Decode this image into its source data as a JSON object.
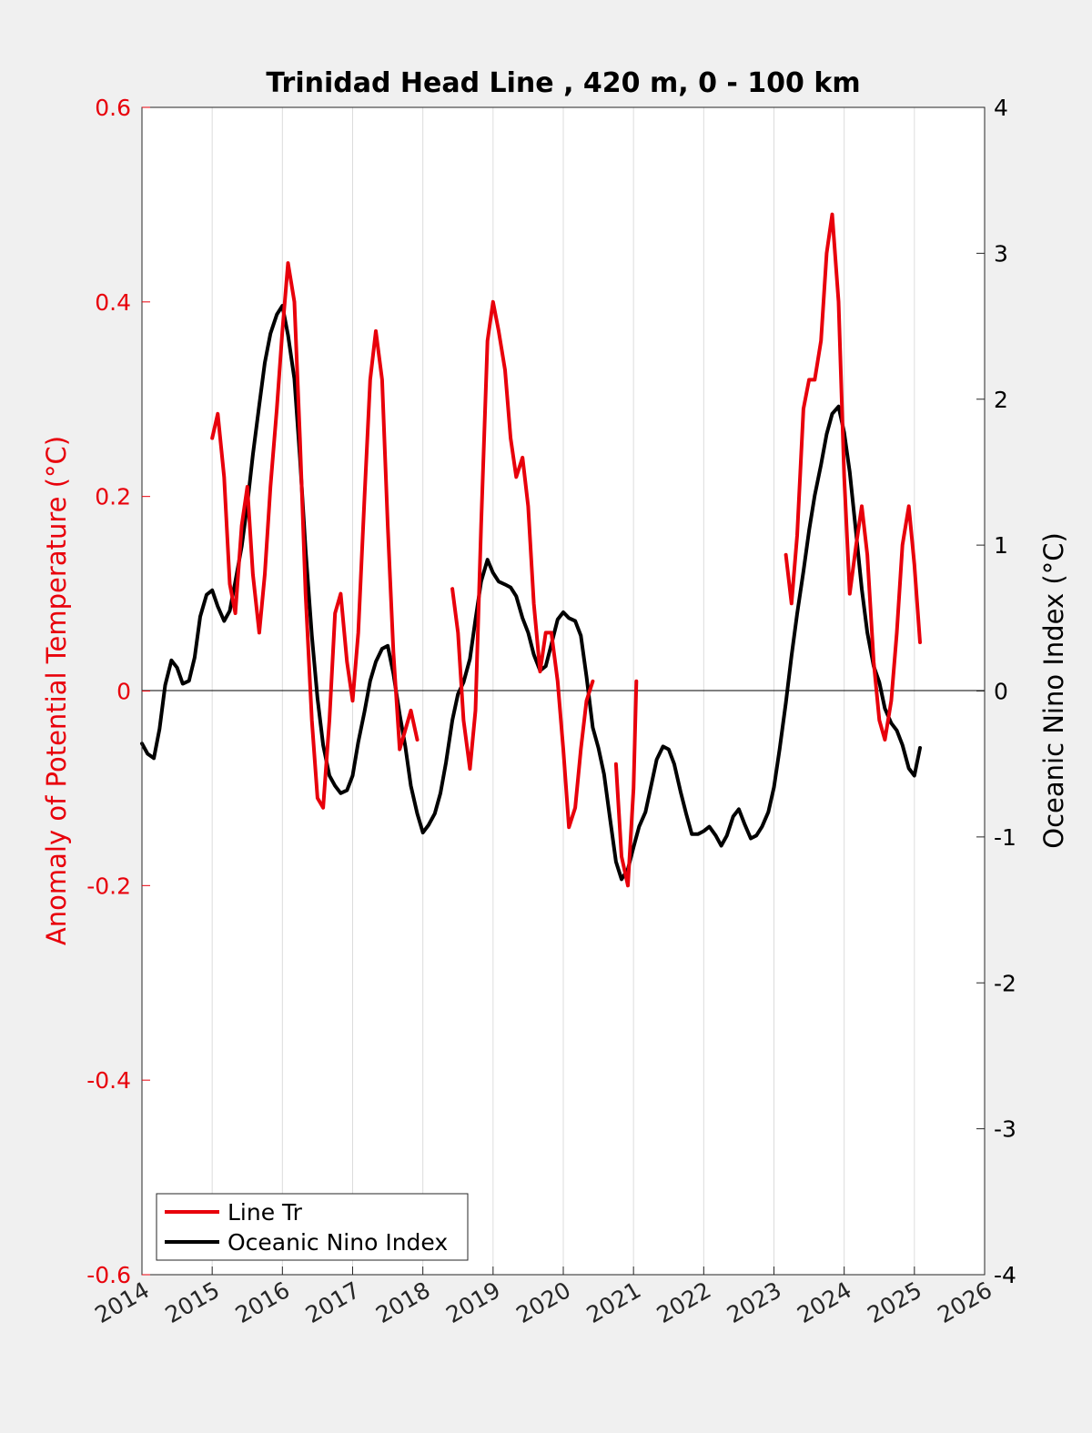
{
  "chart_data": {
    "type": "line",
    "title": "Trinidad Head Line , 420 m, 0 - 100 km",
    "xlabel": "",
    "ylabel_left": "Anomaly of Potential Temperature (°C)",
    "ylabel_right": "Oceanic Nino Index (°C)",
    "xlim": [
      2014,
      2026
    ],
    "ylim_left": [
      -0.6,
      0.6
    ],
    "ylim_right": [
      -4,
      4
    ],
    "x_ticks": [
      "2014",
      "2015",
      "2016",
      "2017",
      "2018",
      "2019",
      "2020",
      "2021",
      "2022",
      "2023",
      "2024",
      "2025",
      "2026"
    ],
    "y_left_ticks": [
      "-0.6",
      "-0.4",
      "-0.2",
      "0",
      "0.2",
      "0.4",
      "0.6"
    ],
    "y_right_ticks": [
      "-4",
      "-3",
      "-2",
      "-1",
      "0",
      "1",
      "2",
      "3",
      "4"
    ],
    "grid": "vertical",
    "legend_position": "bottom-left",
    "colors": {
      "line_tr": "#e8000b",
      "oni": "#000000",
      "axis_left": "#e8000b",
      "axis_right": "#000000"
    },
    "series": [
      {
        "name": "Line Tr",
        "axis": "left",
        "color": "#e8000b",
        "segments": [
          [
            [
              2015.0,
              0.26
            ],
            [
              2015.08,
              0.285
            ],
            [
              2015.17,
              0.22
            ],
            [
              2015.25,
              0.11
            ],
            [
              2015.33,
              0.08
            ],
            [
              2015.42,
              0.17
            ],
            [
              2015.5,
              0.21
            ],
            [
              2015.58,
              0.12
            ],
            [
              2015.67,
              0.06
            ],
            [
              2015.75,
              0.12
            ],
            [
              2015.83,
              0.21
            ],
            [
              2015.92,
              0.29
            ],
            [
              2016.0,
              0.37
            ],
            [
              2016.08,
              0.44
            ],
            [
              2016.17,
              0.4
            ],
            [
              2016.25,
              0.26
            ],
            [
              2016.33,
              0.1
            ],
            [
              2016.42,
              -0.03
            ],
            [
              2016.5,
              -0.11
            ],
            [
              2016.58,
              -0.12
            ],
            [
              2016.67,
              -0.03
            ],
            [
              2016.75,
              0.08
            ],
            [
              2016.83,
              0.1
            ],
            [
              2016.92,
              0.03
            ],
            [
              2017.0,
              -0.01
            ],
            [
              2017.08,
              0.06
            ],
            [
              2017.17,
              0.2
            ],
            [
              2017.25,
              0.32
            ],
            [
              2017.33,
              0.37
            ],
            [
              2017.42,
              0.32
            ],
            [
              2017.5,
              0.17
            ],
            [
              2017.58,
              0.04
            ],
            [
              2017.67,
              -0.06
            ],
            [
              2017.75,
              -0.04
            ],
            [
              2017.83,
              -0.02
            ],
            [
              2017.92,
              -0.05
            ]
          ],
          [
            [
              2018.42,
              0.105
            ],
            [
              2018.5,
              0.06
            ],
            [
              2018.58,
              -0.03
            ],
            [
              2018.67,
              -0.08
            ],
            [
              2018.75,
              -0.02
            ],
            [
              2018.83,
              0.17
            ],
            [
              2018.92,
              0.36
            ],
            [
              2019.0,
              0.4
            ],
            [
              2019.08,
              0.37
            ],
            [
              2019.17,
              0.33
            ],
            [
              2019.25,
              0.26
            ],
            [
              2019.33,
              0.22
            ],
            [
              2019.42,
              0.24
            ],
            [
              2019.5,
              0.19
            ],
            [
              2019.58,
              0.09
            ],
            [
              2019.67,
              0.02
            ],
            [
              2019.75,
              0.06
            ],
            [
              2019.83,
              0.06
            ],
            [
              2019.92,
              0.01
            ],
            [
              2020.0,
              -0.06
            ],
            [
              2020.08,
              -0.14
            ],
            [
              2020.17,
              -0.12
            ],
            [
              2020.25,
              -0.06
            ],
            [
              2020.33,
              -0.01
            ],
            [
              2020.42,
              0.01
            ]
          ],
          [
            [
              2020.75,
              -0.075
            ],
            [
              2020.83,
              -0.17
            ],
            [
              2020.92,
              -0.2
            ],
            [
              2021.0,
              -0.1
            ],
            [
              2021.04,
              0.01
            ]
          ],
          [
            [
              2023.17,
              0.14
            ],
            [
              2023.25,
              0.09
            ],
            [
              2023.33,
              0.16
            ],
            [
              2023.42,
              0.29
            ],
            [
              2023.5,
              0.32
            ],
            [
              2023.58,
              0.32
            ],
            [
              2023.67,
              0.36
            ],
            [
              2023.75,
              0.45
            ],
            [
              2023.83,
              0.49
            ],
            [
              2023.92,
              0.4
            ],
            [
              2024.0,
              0.22
            ],
            [
              2024.08,
              0.1
            ],
            [
              2024.17,
              0.15
            ],
            [
              2024.25,
              0.19
            ],
            [
              2024.33,
              0.14
            ],
            [
              2024.42,
              0.03
            ],
            [
              2024.5,
              -0.03
            ],
            [
              2024.58,
              -0.05
            ],
            [
              2024.67,
              -0.01
            ],
            [
              2024.75,
              0.06
            ],
            [
              2024.83,
              0.15
            ],
            [
              2024.92,
              0.19
            ],
            [
              2025.0,
              0.13
            ],
            [
              2025.08,
              0.05
            ]
          ]
        ]
      },
      {
        "name": "Oceanic Nino Index",
        "axis": "right",
        "color": "#000000",
        "segments": [
          [
            [
              2014.0,
              -0.36
            ],
            [
              2014.08,
              -0.43
            ],
            [
              2014.17,
              -0.46
            ],
            [
              2014.25,
              -0.26
            ],
            [
              2014.33,
              0.04
            ],
            [
              2014.42,
              0.21
            ],
            [
              2014.5,
              0.16
            ],
            [
              2014.58,
              0.05
            ],
            [
              2014.67,
              0.07
            ],
            [
              2014.75,
              0.23
            ],
            [
              2014.83,
              0.51
            ],
            [
              2014.92,
              0.66
            ],
            [
              2015.0,
              0.69
            ],
            [
              2015.08,
              0.58
            ],
            [
              2015.17,
              0.48
            ],
            [
              2015.25,
              0.55
            ],
            [
              2015.33,
              0.75
            ],
            [
              2015.42,
              0.99
            ],
            [
              2015.5,
              1.28
            ],
            [
              2015.58,
              1.62
            ],
            [
              2015.67,
              1.96
            ],
            [
              2015.75,
              2.25
            ],
            [
              2015.83,
              2.45
            ],
            [
              2015.92,
              2.58
            ],
            [
              2016.0,
              2.64
            ],
            [
              2016.08,
              2.44
            ],
            [
              2016.17,
              2.14
            ],
            [
              2016.25,
              1.6
            ],
            [
              2016.33,
              0.97
            ],
            [
              2016.42,
              0.38
            ],
            [
              2016.5,
              -0.05
            ],
            [
              2016.58,
              -0.37
            ],
            [
              2016.67,
              -0.58
            ],
            [
              2016.75,
              -0.65
            ],
            [
              2016.83,
              -0.7
            ],
            [
              2016.92,
              -0.68
            ],
            [
              2017.0,
              -0.58
            ],
            [
              2017.08,
              -0.35
            ],
            [
              2017.17,
              -0.14
            ],
            [
              2017.25,
              0.07
            ],
            [
              2017.33,
              0.2
            ],
            [
              2017.42,
              0.29
            ],
            [
              2017.5,
              0.31
            ],
            [
              2017.58,
              0.12
            ],
            [
              2017.67,
              -0.16
            ],
            [
              2017.75,
              -0.38
            ],
            [
              2017.83,
              -0.65
            ],
            [
              2017.92,
              -0.84
            ],
            [
              2018.0,
              -0.97
            ],
            [
              2018.08,
              -0.92
            ],
            [
              2018.17,
              -0.84
            ],
            [
              2018.25,
              -0.7
            ],
            [
              2018.33,
              -0.49
            ],
            [
              2018.42,
              -0.2
            ],
            [
              2018.5,
              -0.02
            ],
            [
              2018.58,
              0.06
            ],
            [
              2018.67,
              0.22
            ],
            [
              2018.75,
              0.49
            ],
            [
              2018.83,
              0.75
            ],
            [
              2018.92,
              0.9
            ],
            [
              2019.0,
              0.81
            ],
            [
              2019.08,
              0.75
            ],
            [
              2019.17,
              0.73
            ],
            [
              2019.25,
              0.71
            ],
            [
              2019.33,
              0.65
            ],
            [
              2019.42,
              0.5
            ],
            [
              2019.5,
              0.4
            ],
            [
              2019.58,
              0.25
            ],
            [
              2019.67,
              0.14
            ],
            [
              2019.75,
              0.17
            ],
            [
              2019.83,
              0.32
            ],
            [
              2019.92,
              0.49
            ],
            [
              2020.0,
              0.54
            ],
            [
              2020.08,
              0.5
            ],
            [
              2020.17,
              0.48
            ],
            [
              2020.25,
              0.38
            ],
            [
              2020.33,
              0.1
            ],
            [
              2020.42,
              -0.25
            ],
            [
              2020.5,
              -0.39
            ],
            [
              2020.58,
              -0.57
            ],
            [
              2020.67,
              -0.89
            ],
            [
              2020.75,
              -1.17
            ],
            [
              2020.83,
              -1.29
            ],
            [
              2020.92,
              -1.22
            ],
            [
              2021.0,
              -1.07
            ],
            [
              2021.08,
              -0.93
            ],
            [
              2021.17,
              -0.83
            ],
            [
              2021.25,
              -0.65
            ],
            [
              2021.33,
              -0.47
            ],
            [
              2021.42,
              -0.38
            ],
            [
              2021.5,
              -0.4
            ],
            [
              2021.58,
              -0.5
            ],
            [
              2021.67,
              -0.69
            ],
            [
              2021.75,
              -0.84
            ],
            [
              2021.83,
              -0.98
            ],
            [
              2021.92,
              -0.98
            ],
            [
              2022.0,
              -0.96
            ],
            [
              2022.08,
              -0.93
            ],
            [
              2022.17,
              -0.99
            ],
            [
              2022.25,
              -1.06
            ],
            [
              2022.33,
              -0.99
            ],
            [
              2022.42,
              -0.86
            ],
            [
              2022.5,
              -0.81
            ],
            [
              2022.58,
              -0.91
            ],
            [
              2022.67,
              -1.01
            ],
            [
              2022.75,
              -0.99
            ],
            [
              2022.83,
              -0.93
            ],
            [
              2022.92,
              -0.83
            ],
            [
              2023.0,
              -0.66
            ],
            [
              2023.08,
              -0.4
            ],
            [
              2023.17,
              -0.08
            ],
            [
              2023.25,
              0.24
            ],
            [
              2023.33,
              0.53
            ],
            [
              2023.42,
              0.82
            ],
            [
              2023.5,
              1.1
            ],
            [
              2023.58,
              1.34
            ],
            [
              2023.67,
              1.55
            ],
            [
              2023.75,
              1.76
            ],
            [
              2023.83,
              1.9
            ],
            [
              2023.92,
              1.95
            ],
            [
              2024.0,
              1.77
            ],
            [
              2024.08,
              1.5
            ],
            [
              2024.17,
              1.08
            ],
            [
              2024.25,
              0.7
            ],
            [
              2024.33,
              0.4
            ],
            [
              2024.42,
              0.17
            ],
            [
              2024.5,
              0.06
            ],
            [
              2024.58,
              -0.12
            ],
            [
              2024.67,
              -0.22
            ],
            [
              2024.75,
              -0.27
            ],
            [
              2024.83,
              -0.37
            ],
            [
              2024.92,
              -0.53
            ],
            [
              2025.0,
              -0.58
            ],
            [
              2025.08,
              -0.39
            ]
          ]
        ]
      }
    ]
  }
}
